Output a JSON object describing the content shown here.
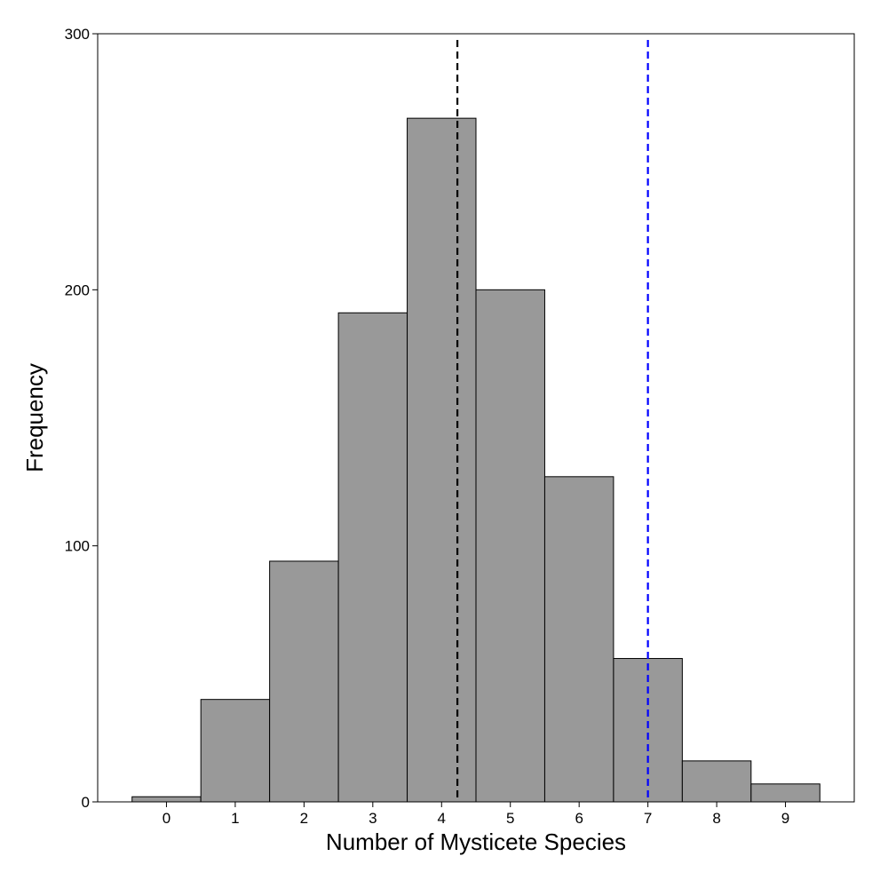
{
  "chart_data": {
    "type": "bar",
    "subtype": "histogram",
    "xlabel": "Number of Mysticete Species",
    "ylabel": "Frequency",
    "categories": [
      "0",
      "1",
      "2",
      "3",
      "4",
      "5",
      "6",
      "7",
      "8",
      "9"
    ],
    "x": [
      0,
      1,
      2,
      3,
      4,
      5,
      6,
      7,
      8,
      9
    ],
    "values": [
      2,
      40,
      94,
      191,
      267,
      200,
      127,
      56,
      16,
      7
    ],
    "xlim": [
      -1,
      10
    ],
    "ylim": [
      0,
      300
    ],
    "yticks": [
      0,
      100,
      200,
      300
    ],
    "grid": false,
    "bar_color": "#999999",
    "bar_edge_color": "#000000",
    "reference_lines": [
      {
        "x": 4.23,
        "color": "#000000",
        "style": "dashed"
      },
      {
        "x": 7,
        "color": "#0000ff",
        "style": "dashed"
      }
    ]
  }
}
